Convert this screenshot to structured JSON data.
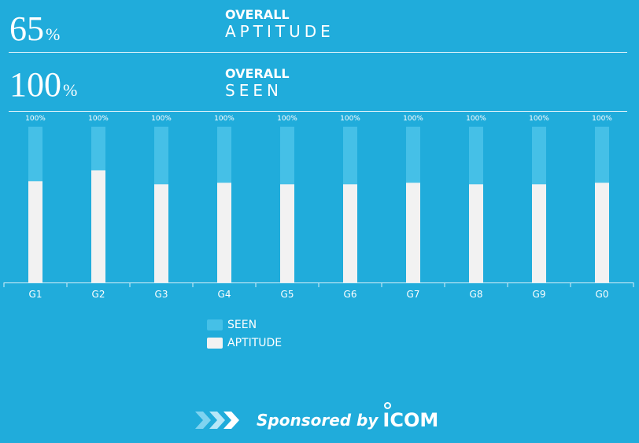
{
  "stats": [
    {
      "value": "65",
      "unit": "%",
      "label_top": "OVERALL",
      "label_bottom": "APTITUDE"
    },
    {
      "value": "100",
      "unit": "%",
      "label_top": "OVERALL",
      "label_bottom": "SEEN"
    }
  ],
  "colors": {
    "background": "#20acdb",
    "seen": "#45c0e7",
    "aptitude": "#f2f2f2"
  },
  "chart_data": {
    "type": "bar",
    "categories": [
      "G1",
      "G2",
      "G3",
      "G4",
      "G5",
      "G6",
      "G7",
      "G8",
      "G9",
      "G0"
    ],
    "series": [
      {
        "name": "SEEN",
        "values": [
          100,
          100,
          100,
          100,
          100,
          100,
          100,
          100,
          100,
          100
        ]
      },
      {
        "name": "APTITUDE",
        "values": [
          65,
          72,
          63,
          64,
          63,
          63,
          64,
          63,
          63,
          64
        ]
      }
    ],
    "data_labels": [
      "100%",
      "100%",
      "100%",
      "100%",
      "100%",
      "100%",
      "100%",
      "100%",
      "100%",
      "100%"
    ],
    "ylim": [
      0,
      100
    ],
    "grid": false,
    "legend_position": "bottom-center",
    "title": "",
    "xlabel": "",
    "ylabel": ""
  },
  "legend": [
    {
      "label": "SEEN"
    },
    {
      "label": "APTITUDE"
    }
  ],
  "sponsor": {
    "text": "Sponsored by",
    "brand": "ICOM",
    "icon": "chevron-arrows-icon"
  }
}
